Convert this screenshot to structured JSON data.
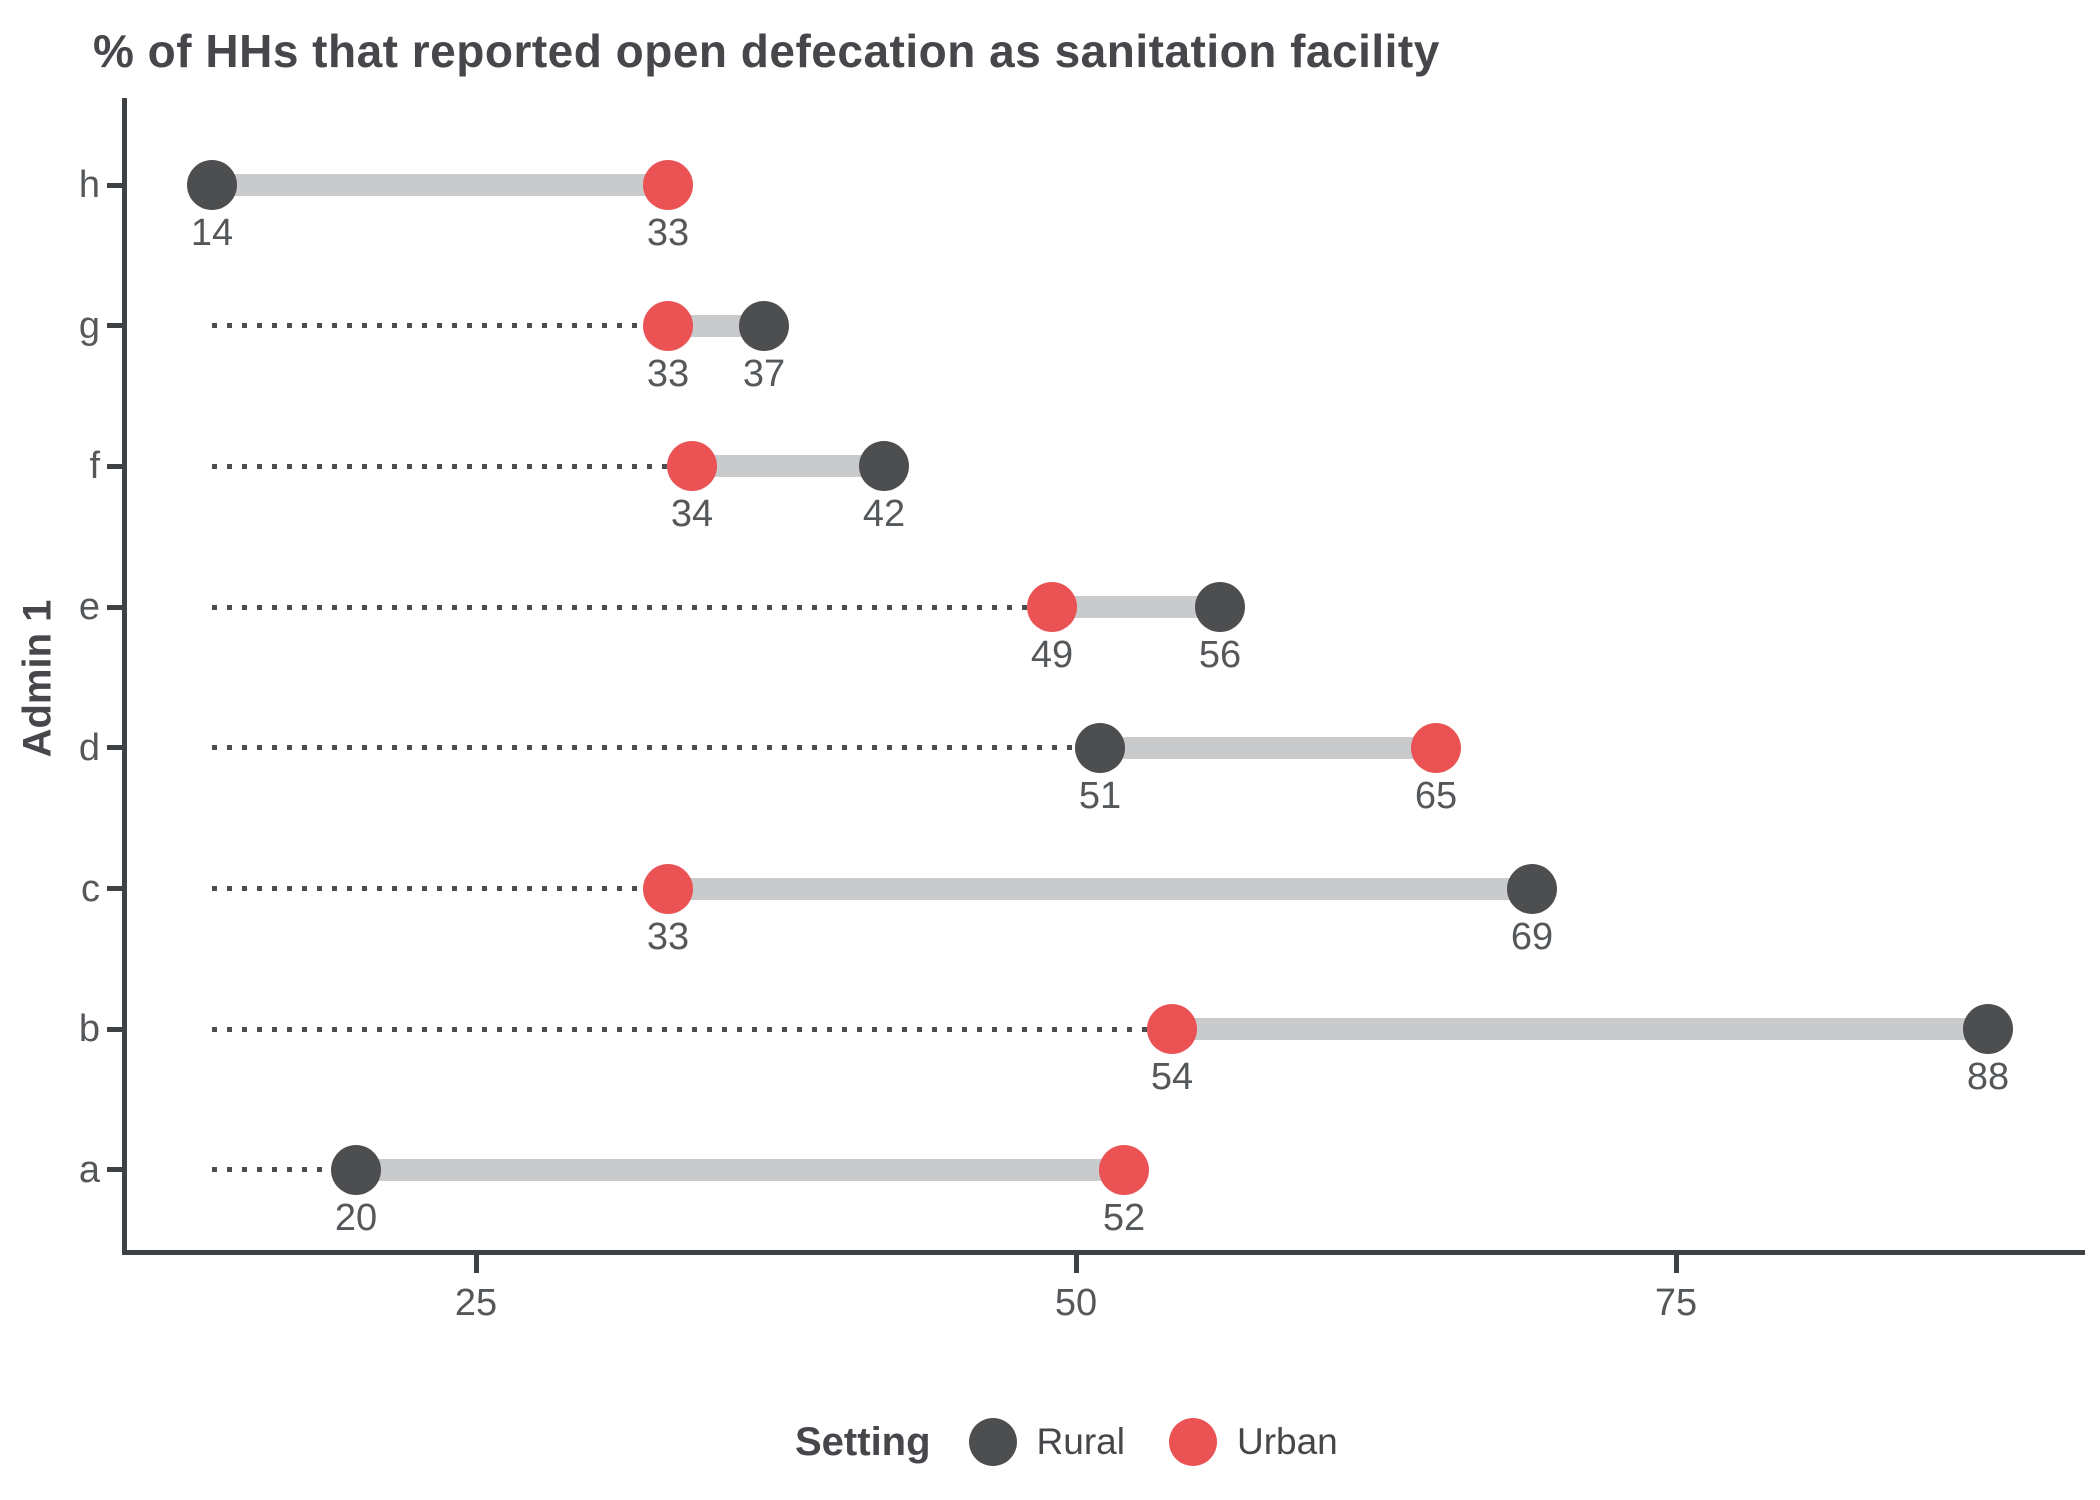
{
  "chart_data": {
    "type": "scatter",
    "variant": "dumbbell",
    "title": "% of HHs that reported open defecation as sanitation facility",
    "xlabel": "",
    "ylabel": "Admin 1",
    "categories": [
      "h",
      "g",
      "f",
      "e",
      "d",
      "c",
      "b",
      "a"
    ],
    "series": [
      {
        "name": "Rural",
        "color": "#4d4e50",
        "values": [
          14,
          37,
          42,
          56,
          51,
          69,
          88,
          20
        ]
      },
      {
        "name": "Urban",
        "color": "#ea5254",
        "values": [
          33,
          33,
          34,
          49,
          65,
          33,
          54,
          52
        ]
      }
    ],
    "x_ticks": [
      25,
      50,
      75
    ],
    "xlim": [
      10.4,
      92
    ],
    "grid": false,
    "value_labels": true,
    "connector_color": "#c9cacb",
    "leader_line_style": "dotted",
    "legend": {
      "title": "Setting",
      "position": "bottom",
      "entries": [
        "Rural",
        "Urban"
      ]
    }
  }
}
